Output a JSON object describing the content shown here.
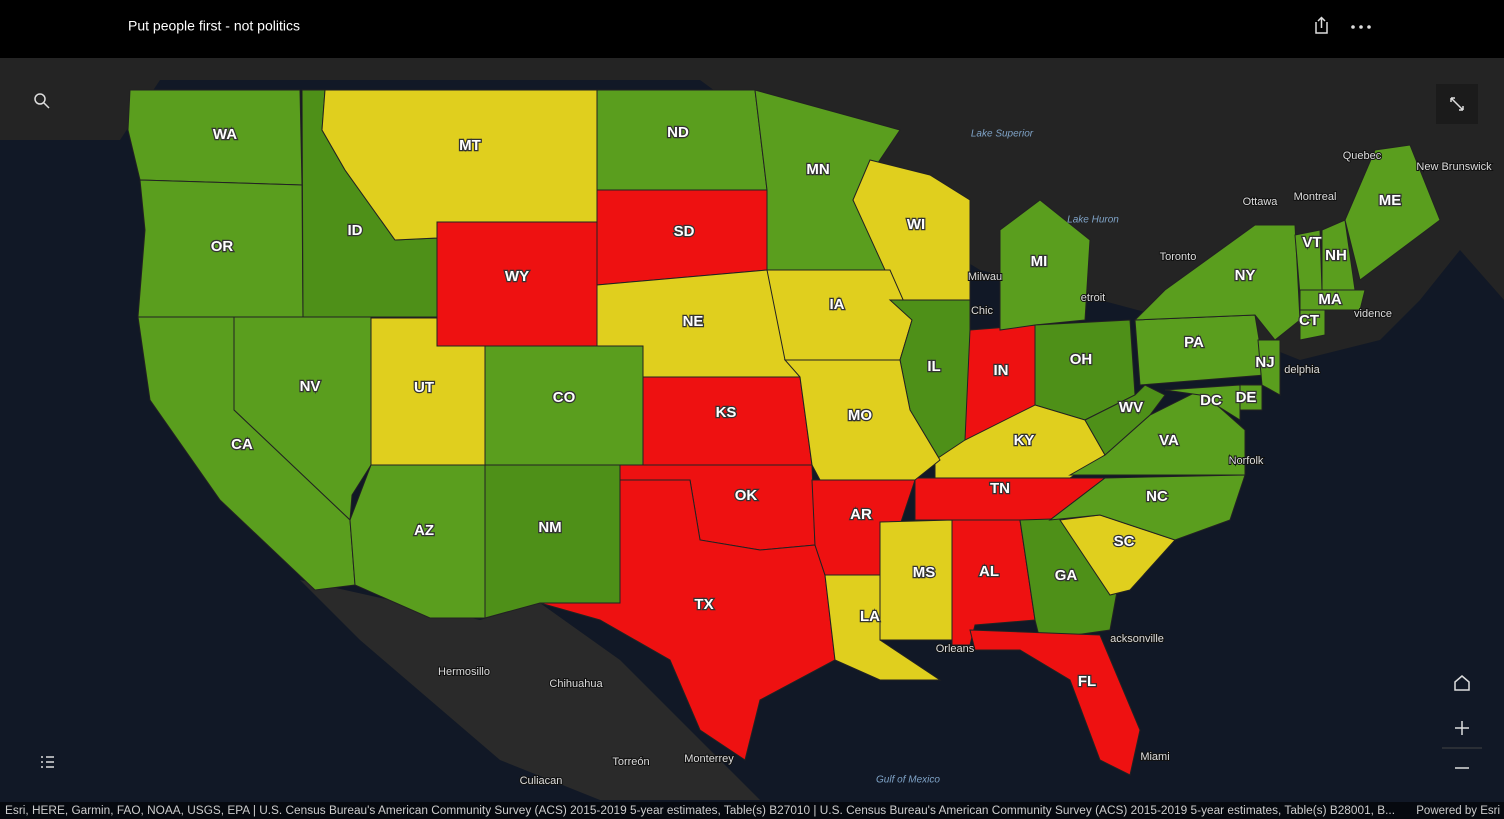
{
  "header": {
    "title": "Put people first - not politics"
  },
  "map": {
    "states": [
      {
        "label": "WA",
        "color": "#5a9e1e"
      },
      {
        "label": "OR",
        "color": "#5a9e1e"
      },
      {
        "label": "ID",
        "color": "#4e9018"
      },
      {
        "label": "MT",
        "color": "#e0cf1e"
      },
      {
        "label": "ND",
        "color": "#5a9e1e"
      },
      {
        "label": "SD",
        "color": "#ee1111"
      },
      {
        "label": "WY",
        "color": "#ee1111"
      },
      {
        "label": "NE",
        "color": "#e0cf1e"
      },
      {
        "label": "MN",
        "color": "#5a9e1e"
      },
      {
        "label": "WI",
        "color": "#e0cf1e"
      },
      {
        "label": "IA",
        "color": "#e0cf1e"
      },
      {
        "label": "IL",
        "color": "#4e9018"
      },
      {
        "label": "IN",
        "color": "#ee1111"
      },
      {
        "label": "MI",
        "color": "#5a9e1e"
      },
      {
        "label": "OH",
        "color": "#4e9018"
      },
      {
        "label": "KY",
        "color": "#e0cf1e"
      },
      {
        "label": "TN",
        "color": "#ee1111"
      },
      {
        "label": "UT",
        "color": "#e0cf1e"
      },
      {
        "label": "CO",
        "color": "#5a9e1e"
      },
      {
        "label": "KS",
        "color": "#ee1111"
      },
      {
        "label": "MO",
        "color": "#e0cf1e"
      },
      {
        "label": "NV",
        "color": "#5a9e1e"
      },
      {
        "label": "CA",
        "color": "#5a9e1e"
      },
      {
        "label": "AZ",
        "color": "#5a9e1e"
      },
      {
        "label": "NM",
        "color": "#4e9018"
      },
      {
        "label": "OK",
        "color": "#ee1111"
      },
      {
        "label": "TX",
        "color": "#ee1111"
      },
      {
        "label": "AR",
        "color": "#ee1111"
      },
      {
        "label": "LA",
        "color": "#e0cf1e"
      },
      {
        "label": "MS",
        "color": "#e0cf1e"
      },
      {
        "label": "AL",
        "color": "#ee1111"
      },
      {
        "label": "GA",
        "color": "#4e9018"
      },
      {
        "label": "FL",
        "color": "#ee1111"
      },
      {
        "label": "SC",
        "color": "#e0cf1e"
      },
      {
        "label": "NC",
        "color": "#5a9e1e"
      },
      {
        "label": "VA",
        "color": "#5a9e1e"
      },
      {
        "label": "WV",
        "color": "#4e9018"
      },
      {
        "label": "PA",
        "color": "#5a9e1e"
      },
      {
        "label": "NY",
        "color": "#5a9e1e"
      },
      {
        "label": "VT",
        "color": "#5a9e1e"
      },
      {
        "label": "NH",
        "color": "#5a9e1e"
      },
      {
        "label": "ME",
        "color": "#5a9e1e"
      },
      {
        "label": "MA",
        "color": "#5a9e1e"
      },
      {
        "label": "CT",
        "color": "#5a9e1e"
      },
      {
        "label": "NJ",
        "color": "#5a9e1e"
      },
      {
        "label": "DE",
        "color": "#5a9e1e"
      },
      {
        "label": "DC",
        "color": "#5a9e1e"
      }
    ],
    "places": [
      "Lake Superior",
      "Lake Huron",
      "Quebec",
      "New Brunswick",
      "Ottawa",
      "Montreal",
      "Toronto",
      "Milwau",
      "Chic",
      "etroit",
      "delphia",
      "vidence",
      "Norfolk",
      "acksonville",
      "Miami",
      "Orleans",
      "Hermosillo",
      "Chihuahua",
      "Torreón",
      "Monterrey",
      "Culiacan",
      "Gulf of Mexico"
    ],
    "attribution": "Esri, HERE, Garmin, FAO, NOAA, USGS, EPA | U.S. Census Bureau's American Community Survey (ACS) 2015-2019 5-year estimates, Table(s) B27010 | U.S. Census Bureau's American Community Survey (ACS) 2015-2019 5-year estimates, Table(s) B28001, B...",
    "powered_by": "Powered by Esri"
  }
}
